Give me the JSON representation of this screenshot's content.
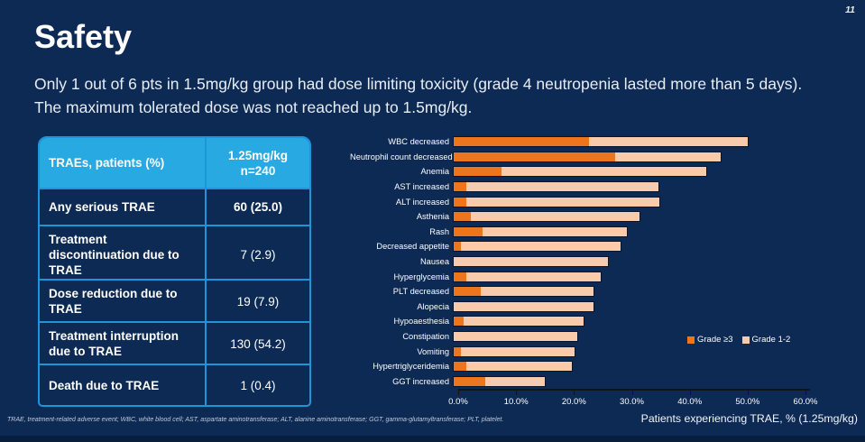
{
  "slide": {
    "page_number": "11",
    "title": "Safety",
    "subtitle_line1": "Only 1 out of 6 pts in 1.5mg/kg group had dose limiting toxicity (grade 4 neutropenia lasted more than 5 days).",
    "subtitle_line2": "The maximum tolerated dose was not reached up to 1.5mg/kg.",
    "footnote": "TRAE, treatment-related adverse event; WBC, white blood cell; AST, aspartate aminotransferase; ALT, alanine aminotransferase; GGT, gamma-glutamyltransferase; PLT, platelet."
  },
  "table": {
    "header_col1": "TRAEs, patients (%)",
    "header_col2_line1": "1.25mg/kg",
    "header_col2_line2": "n=240",
    "rows": [
      {
        "label": "Any serious TRAE",
        "value": "60 (25.0)"
      },
      {
        "label": "Treatment discontinuation due to TRAE",
        "value": "7 (2.9)"
      },
      {
        "label": "Dose reduction due to TRAE",
        "value": "19 (7.9)"
      },
      {
        "label": "Treatment interruption due to TRAE",
        "value": "130 (54.2)"
      },
      {
        "label": "Death due to TRAE",
        "value": "1 (0.4)"
      }
    ]
  },
  "chart_data": {
    "type": "bar",
    "orientation": "horizontal",
    "stacked": true,
    "title": "",
    "xlabel": "Patients experiencing TRAE, % (1.25mg/kg)",
    "ylabel": "",
    "xlim": [
      0,
      60
    ],
    "grid": false,
    "x_tick_values": [
      0,
      10,
      20,
      30,
      40,
      50,
      60
    ],
    "x_tick_labels": [
      "0.0%",
      "10.0%",
      "20.0%",
      "30.0%",
      "40.0%",
      "50.0%",
      "60.0%"
    ],
    "categories": [
      "WBC decreased",
      "Neutrophil count decreased",
      "Anemia",
      "AST increased",
      "ALT increased",
      "Asthenia",
      "Rash",
      "Decreased appetite",
      "Nausea",
      "Hyperglycemia",
      "PLT decreased",
      "Alopecia",
      "Hypoaesthesia",
      "Constipation",
      "Vomiting",
      "Hypertriglyceridemia",
      "GGT increased"
    ],
    "series": [
      {
        "name": "Grade ≥3",
        "color": "#ED751C",
        "values": [
          23.3,
          27.9,
          8.3,
          2.1,
          2.1,
          2.9,
          5.0,
          1.3,
          0,
          2.1,
          4.6,
          0,
          1.7,
          0,
          1.3,
          2.1,
          5.4
        ]
      },
      {
        "name": "Grade 1-2",
        "color": "#F8CBAD",
        "values": [
          27.5,
          18.3,
          35.4,
          33.3,
          33.4,
          29.2,
          25.0,
          27.5,
          26.7,
          23.3,
          19.6,
          24.2,
          20.8,
          21.3,
          19.6,
          18.3,
          10.4
        ]
      }
    ],
    "legend_position": "right-middle"
  },
  "colors": {
    "background": "#0D2A54",
    "bottom_strip": "#071E3D",
    "table_header_bg": "#29A9E1",
    "table_border": "#1E95D8",
    "grade3_orange": "#ED751C",
    "grade12_peach": "#F8CBAD",
    "axis_line": "#141414",
    "text_white": "#FFFFFF"
  }
}
